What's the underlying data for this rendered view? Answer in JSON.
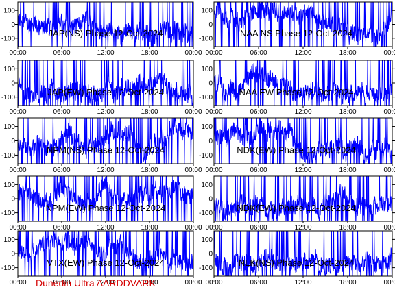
{
  "footer": "Dunedin Ultra AARDDVARK",
  "chart_data": [
    {
      "type": "line",
      "title": "JAP(NS) Phase 12-Oct-2024",
      "x_ticks": [
        "00:00",
        "06:00",
        "12:00",
        "18:00",
        "00:00"
      ],
      "y_ticks": [
        "100",
        "0",
        "-100"
      ],
      "ylim": [
        -160,
        160
      ],
      "series_color": "#0000ff"
    },
    {
      "type": "line",
      "title": "NAA NS Phase 12-Oct-2024",
      "x_ticks": [
        "00:00",
        "06:00",
        "12:00",
        "18:00",
        "00:00"
      ],
      "y_ticks": [
        "100",
        "0",
        "-100"
      ],
      "ylim": [
        -160,
        160
      ],
      "series_color": "#0000ff"
    },
    {
      "type": "line",
      "title": "JAP(EW) Phase 12-Oct-2024",
      "x_ticks": [
        "00:00",
        "06:00",
        "12:00",
        "18:00",
        "00:00"
      ],
      "y_ticks": [
        "100",
        "0",
        "-100"
      ],
      "ylim": [
        -160,
        160
      ],
      "series_color": "#0000ff"
    },
    {
      "type": "line",
      "title": "NAA EW Phase 12-Oct-2024",
      "x_ticks": [
        "00:00",
        "06:00",
        "12:00",
        "18:00",
        "00:00"
      ],
      "y_ticks": [
        "100",
        "0",
        "-100"
      ],
      "ylim": [
        -160,
        160
      ],
      "series_color": "#0000ff"
    },
    {
      "type": "line",
      "title": "NPM(NS) Phase 12-Oct-2024",
      "x_ticks": [
        "00:00",
        "06:00",
        "12:00",
        "18:00",
        "00:00"
      ],
      "y_ticks": [
        "100",
        "0",
        "-100"
      ],
      "ylim": [
        -160,
        160
      ],
      "series_color": "#0000ff"
    },
    {
      "type": "line",
      "title": "NDK(EW) Phase 12-Oct-2024",
      "x_ticks": [
        "00:00",
        "06:00",
        "12:00",
        "18:00",
        "00:00"
      ],
      "y_ticks": [
        "100",
        "0",
        "-100"
      ],
      "ylim": [
        -160,
        160
      ],
      "series_color": "#0000ff"
    },
    {
      "type": "line",
      "title": "NPM(EW) Phase 12-Oct-2024",
      "x_ticks": [
        "00:00",
        "06:00",
        "12:00",
        "18:00",
        "00:00"
      ],
      "y_ticks": [
        "100",
        "0",
        "-100"
      ],
      "ylim": [
        -160,
        160
      ],
      "series_color": "#0000ff"
    },
    {
      "type": "line",
      "title": "NDK(EW) Phase 12-Oct-2024",
      "x_ticks": [
        "00:00",
        "06:00",
        "12:00",
        "18:00",
        "00:00"
      ],
      "y_ticks": [
        "100",
        "0",
        "-100"
      ],
      "ylim": [
        -160,
        160
      ],
      "series_color": "#0000ff"
    },
    {
      "type": "line",
      "title": "VTX(EW) Phase 12-Oct-2024",
      "x_ticks": [
        "00:00",
        "06:00",
        "12:00",
        "18:00",
        "00:00"
      ],
      "y_ticks": [
        "100",
        "0",
        "-100"
      ],
      "ylim": [
        -160,
        160
      ],
      "series_color": "#0000ff"
    },
    {
      "type": "line",
      "title": "NLK(NS) Phase 12-Oct-2024",
      "x_ticks": [
        "00:00",
        "06:00",
        "12:00",
        "18:00",
        "00:00"
      ],
      "y_ticks": [
        "100",
        "0",
        "-100"
      ],
      "ylim": [
        -160,
        160
      ],
      "series_color": "#0000ff"
    }
  ]
}
